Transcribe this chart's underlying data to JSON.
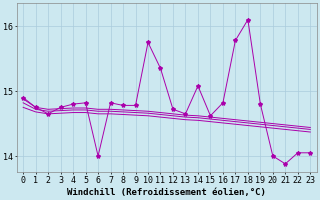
{
  "x": [
    0,
    1,
    2,
    3,
    4,
    5,
    6,
    7,
    8,
    9,
    10,
    11,
    12,
    13,
    14,
    15,
    16,
    17,
    18,
    19,
    20,
    21,
    22,
    23
  ],
  "y_main": [
    14.9,
    14.75,
    14.65,
    14.75,
    14.8,
    14.82,
    14.0,
    14.82,
    14.78,
    14.78,
    15.75,
    15.35,
    14.72,
    14.65,
    15.08,
    14.62,
    14.82,
    15.78,
    16.1,
    14.8,
    14.0,
    13.88,
    14.05,
    14.05
  ],
  "y_trend1": [
    14.88,
    14.75,
    14.72,
    14.73,
    14.74,
    14.74,
    14.72,
    14.72,
    14.71,
    14.7,
    14.69,
    14.67,
    14.65,
    14.63,
    14.62,
    14.6,
    14.58,
    14.56,
    14.54,
    14.52,
    14.5,
    14.48,
    14.46,
    14.44
  ],
  "y_trend2": [
    14.82,
    14.72,
    14.69,
    14.7,
    14.71,
    14.71,
    14.69,
    14.69,
    14.68,
    14.67,
    14.66,
    14.64,
    14.62,
    14.6,
    14.59,
    14.57,
    14.55,
    14.53,
    14.51,
    14.49,
    14.47,
    14.45,
    14.43,
    14.41
  ],
  "y_trend3": [
    14.75,
    14.68,
    14.65,
    14.66,
    14.67,
    14.67,
    14.65,
    14.65,
    14.64,
    14.63,
    14.62,
    14.6,
    14.58,
    14.56,
    14.55,
    14.53,
    14.51,
    14.49,
    14.47,
    14.45,
    14.43,
    14.41,
    14.39,
    14.37
  ],
  "line_color": "#aa00aa",
  "bg_color": "#cce8f0",
  "grid_color": "#aaccdd",
  "ylabel_vals": [
    14,
    15,
    16
  ],
  "xlabel": "Windchill (Refroidissement éolien,°C)",
  "xlim": [
    -0.5,
    23.5
  ],
  "ylim": [
    13.75,
    16.35
  ],
  "tick_fontsize": 6,
  "label_fontsize": 6.5
}
